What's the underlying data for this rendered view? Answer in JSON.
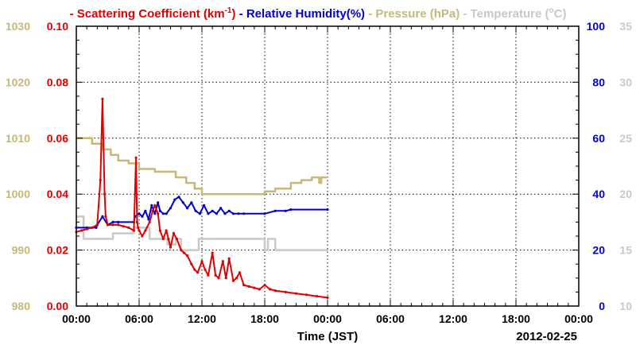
{
  "chart_data": {
    "type": "line",
    "legend": [
      {
        "dash": "-",
        "label": "Scattering Coefficient (km",
        "sup": "-1",
        "tail": ")",
        "color": "#e00000"
      },
      {
        "dash": "-",
        "label": "Relative Humidity(%)",
        "sup": "",
        "tail": "",
        "color": "#0000d0"
      },
      {
        "dash": "-",
        "label": "Pressure (hPa)",
        "sup": "",
        "tail": "",
        "color": "#c8b878"
      },
      {
        "dash": "-",
        "label": "Temperature (",
        "sup": "o",
        "tail": "C)",
        "color": "#c8c8c8"
      }
    ],
    "xlabel": "Time (JST)",
    "date_label": "2012-02-25",
    "x_ticks": [
      "00:00",
      "06:00",
      "12:00",
      "18:00",
      "00:00",
      "06:00",
      "12:00",
      "18:00",
      "00:00"
    ],
    "xlim_hours": [
      0,
      48
    ],
    "grid": true,
    "axes": {
      "scattering": {
        "ticks": [
          "0.00",
          "0.02",
          "0.04",
          "0.06",
          "0.08",
          "0.10"
        ],
        "ylim": [
          0,
          0.1
        ],
        "color": "#e00000"
      },
      "pressure": {
        "ticks": [
          "980",
          "990",
          "1000",
          "1010",
          "1020",
          "1030"
        ],
        "ylim": [
          980,
          1030
        ],
        "color": "#c8b878"
      },
      "humidity": {
        "ticks": [
          "0",
          "20",
          "40",
          "60",
          "80",
          "100"
        ],
        "ylim": [
          0,
          100
        ],
        "color": "#0000d0"
      },
      "temperature": {
        "ticks": [
          "10",
          "15",
          "20",
          "25",
          "30",
          "35"
        ],
        "ylim": [
          10,
          35
        ],
        "color": "#c8c8c8"
      }
    },
    "series": [
      {
        "name": "Scattering Coefficient",
        "axis": "scattering",
        "color": "#e00000",
        "x": [
          0,
          0.5,
          1,
          1.5,
          2,
          2.3,
          2.5,
          2.7,
          2.8,
          3,
          3.5,
          4,
          4.5,
          5,
          5.5,
          5.7,
          5.8,
          5.9,
          6,
          6.3,
          6.6,
          7,
          7.3,
          7.5,
          7.8,
          8,
          8.3,
          8.6,
          8.8,
          9,
          9.3,
          9.6,
          10,
          10.3,
          10.6,
          11,
          11.3,
          11.6,
          12,
          12.3,
          12.6,
          13,
          13.3,
          13.6,
          14,
          14.3,
          14.6,
          15,
          15.3,
          15.6,
          16,
          16.5,
          17,
          17.5,
          18,
          18.5,
          19,
          20,
          21,
          22,
          23,
          24
        ],
        "values": [
          0.0265,
          0.027,
          0.0275,
          0.028,
          0.029,
          0.045,
          0.074,
          0.04,
          0.032,
          0.029,
          0.029,
          0.029,
          0.0285,
          0.028,
          0.027,
          0.053,
          0.03,
          0.028,
          0.027,
          0.025,
          0.027,
          0.03,
          0.034,
          0.036,
          0.033,
          0.027,
          0.024,
          0.027,
          0.024,
          0.021,
          0.026,
          0.024,
          0.02,
          0.019,
          0.018,
          0.015,
          0.013,
          0.012,
          0.016,
          0.013,
          0.011,
          0.019,
          0.011,
          0.01,
          0.016,
          0.01,
          0.017,
          0.009,
          0.01,
          0.012,
          0.0075,
          0.007,
          0.0065,
          0.006,
          0.0075,
          0.006,
          0.0055,
          0.005,
          0.0045,
          0.004,
          0.0035,
          0.003
        ]
      },
      {
        "name": "Relative Humidity",
        "axis": "humidity",
        "color": "#0000d0",
        "x": [
          0,
          1,
          1.9,
          2,
          2.5,
          3,
          3.5,
          4,
          5.5,
          5.6,
          6,
          6.3,
          6.6,
          6.9,
          7.2,
          7.5,
          7.8,
          8,
          8.3,
          8.6,
          9,
          9.4,
          9.8,
          10.2,
          10.6,
          11,
          11.4,
          11.8,
          12.2,
          12.6,
          13,
          13.4,
          13.8,
          14.2,
          14.6,
          15,
          15.5,
          16,
          18,
          19,
          20,
          20.5,
          24
        ],
        "values": [
          28,
          28,
          28,
          29,
          32,
          29,
          30,
          30,
          30,
          32,
          33,
          32,
          34,
          31,
          36,
          33,
          37,
          34,
          33,
          33,
          35,
          38,
          39,
          37,
          35,
          37,
          34,
          33,
          36,
          33,
          34,
          33,
          35,
          33,
          34,
          33,
          33,
          33,
          33,
          34,
          34,
          34.5,
          34.5
        ]
      },
      {
        "name": "Pressure",
        "axis": "pressure",
        "color": "#c8b878",
        "x": [
          0,
          1.5,
          1.5,
          2.5,
          2.5,
          3.3,
          3.3,
          4,
          4,
          5,
          5,
          6,
          6,
          7.5,
          7.5,
          9.5,
          9.5,
          10.5,
          10.5,
          11.3,
          11.3,
          12,
          12,
          12.8,
          12.8,
          18,
          18,
          19,
          19,
          20.5,
          20.5,
          21.5,
          21.5,
          22.5,
          22.5,
          23.2,
          23.2,
          23.4,
          23.4,
          24
        ],
        "values": [
          1010,
          1010,
          1009,
          1009,
          1008,
          1008,
          1007,
          1007,
          1006,
          1006,
          1005.5,
          1005.5,
          1004.5,
          1004.5,
          1004,
          1004,
          1003,
          1003,
          1002,
          1002,
          1001,
          1001,
          1000,
          1000,
          1000,
          1000,
          1000.5,
          1000.5,
          1001,
          1001,
          1002,
          1002,
          1002.5,
          1002.5,
          1003,
          1003,
          1002,
          1002,
          1003,
          1003
        ]
      },
      {
        "name": "Temperature",
        "axis": "temperature",
        "color": "#c8c8c8",
        "x": [
          0,
          0.7,
          0.7,
          3.5,
          3.5,
          5.5,
          5.5,
          7,
          7,
          8.7,
          8.7,
          9.5,
          9.5,
          10,
          10,
          11.7,
          11.7,
          18,
          18,
          18.3,
          18.3,
          19,
          19,
          19.3,
          19.3,
          24
        ],
        "values": [
          18,
          18,
          16,
          16,
          16.5,
          16.5,
          17,
          17,
          16,
          16,
          15.5,
          15.5,
          16,
          16,
          15,
          15,
          16,
          16,
          15,
          15,
          16,
          16,
          15,
          15,
          15,
          15
        ]
      }
    ]
  }
}
